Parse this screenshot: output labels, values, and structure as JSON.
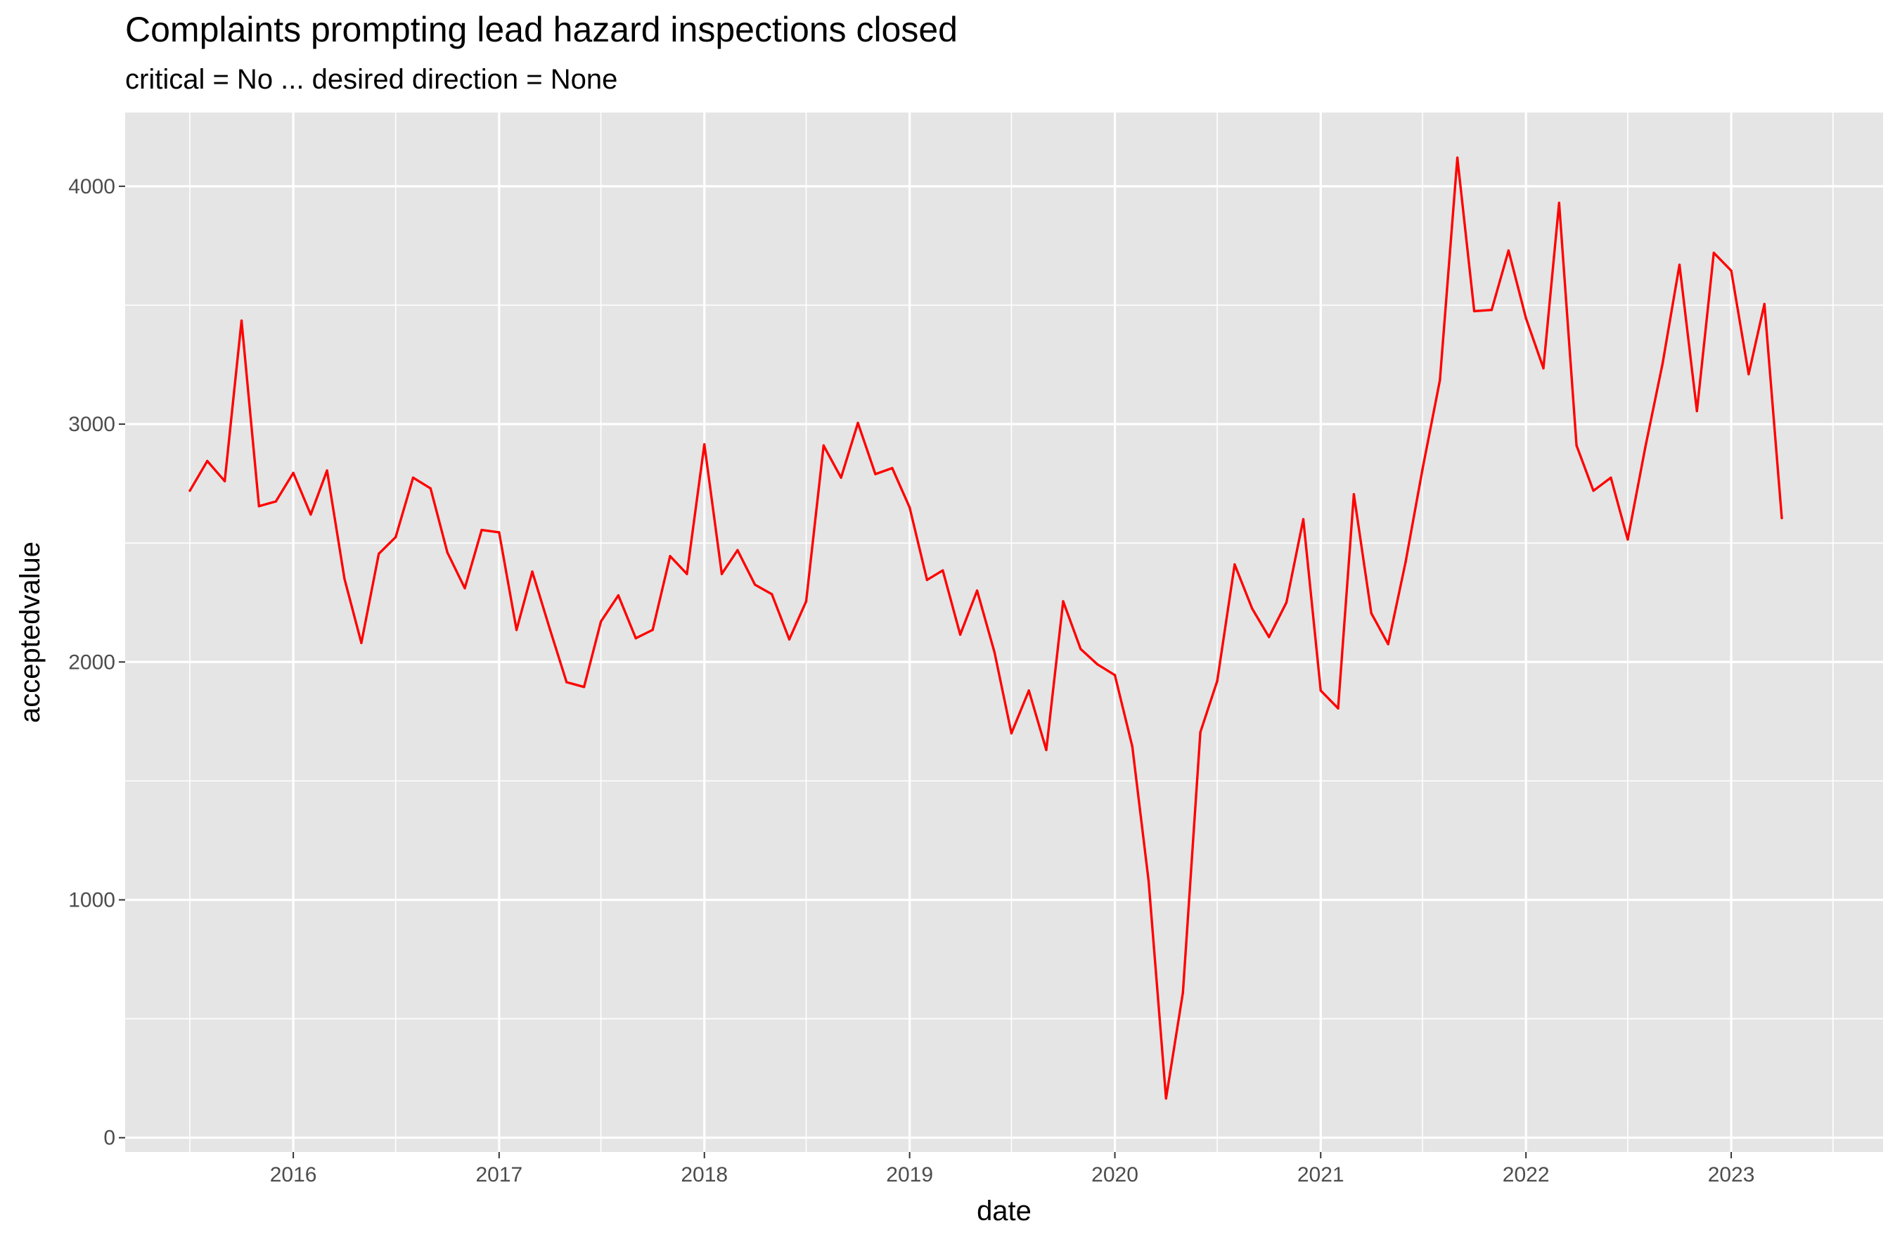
{
  "chart_data": {
    "type": "line",
    "title": "Complaints prompting lead hazard inspections closed",
    "subtitle": "critical = No ... desired direction = None",
    "xlabel": "date",
    "ylabel": "acceptedvalue",
    "x_ticks": [
      "2016",
      "2017",
      "2018",
      "2019",
      "2020",
      "2021",
      "2022",
      "2023"
    ],
    "y_ticks": [
      0,
      1000,
      2000,
      3000,
      4000
    ],
    "ylim": [
      -60,
      4310
    ],
    "xlim": [
      "2015-03-08",
      "2023-09-28"
    ],
    "grid": true,
    "line_color": "#ff0000",
    "panel_background": "#e5e5e5",
    "series": [
      {
        "x": [
          "2015-07-01",
          "2015-08-01",
          "2015-09-01",
          "2015-10-01",
          "2015-11-01",
          "2015-12-01",
          "2016-01-01",
          "2016-02-01",
          "2016-03-01",
          "2016-04-01",
          "2016-05-01",
          "2016-06-01",
          "2016-07-01",
          "2016-08-01",
          "2016-09-01",
          "2016-10-01",
          "2016-11-01",
          "2016-12-01",
          "2017-01-01",
          "2017-02-01",
          "2017-03-01",
          "2017-04-01",
          "2017-05-01",
          "2017-06-01",
          "2017-07-01",
          "2017-08-01",
          "2017-09-01",
          "2017-10-01",
          "2017-11-01",
          "2017-12-01",
          "2018-01-01",
          "2018-02-01",
          "2018-03-01",
          "2018-04-01",
          "2018-05-01",
          "2018-06-01",
          "2018-07-01",
          "2018-08-01",
          "2018-09-01",
          "2018-10-01",
          "2018-11-01",
          "2018-12-01",
          "2019-01-01",
          "2019-02-01",
          "2019-03-01",
          "2019-04-01",
          "2019-05-01",
          "2019-06-01",
          "2019-07-01",
          "2019-08-01",
          "2019-09-01",
          "2019-10-01",
          "2019-11-01",
          "2019-12-01",
          "2020-01-01",
          "2020-02-01",
          "2020-03-01",
          "2020-04-01",
          "2020-05-01",
          "2020-06-01",
          "2020-07-01",
          "2020-08-01",
          "2020-09-01",
          "2020-10-01",
          "2020-11-01",
          "2020-12-01",
          "2021-01-01",
          "2021-02-01",
          "2021-03-01",
          "2021-04-01",
          "2021-05-01",
          "2021-06-01",
          "2021-07-01",
          "2021-08-01",
          "2021-09-01",
          "2021-10-01",
          "2021-11-01",
          "2021-12-01",
          "2022-01-01",
          "2022-02-01",
          "2022-03-01",
          "2022-04-01",
          "2022-05-01",
          "2022-06-01",
          "2022-07-01",
          "2022-08-01",
          "2022-09-01",
          "2022-10-01",
          "2022-11-01",
          "2022-12-01",
          "2023-01-01",
          "2023-02-01",
          "2023-03-01",
          "2023-04-01"
        ],
        "y": [
          2720,
          2845,
          2760,
          3435,
          2655,
          2675,
          2795,
          2620,
          2805,
          2350,
          2080,
          2455,
          2525,
          2775,
          2730,
          2460,
          2310,
          2555,
          2545,
          2135,
          2380,
          2140,
          1915,
          1895,
          2170,
          2280,
          2100,
          2135,
          2445,
          2370,
          2915,
          2370,
          2470,
          2325,
          2285,
          2095,
          2255,
          2910,
          2775,
          3005,
          2790,
          2815,
          2650,
          2345,
          2385,
          2115,
          2300,
          2040,
          1700,
          1880,
          1630,
          2255,
          2055,
          1990,
          1945,
          1645,
          1080,
          165,
          610,
          1705,
          1920,
          2410,
          2225,
          2105,
          2250,
          2600,
          1880,
          1805,
          2705,
          2205,
          2075,
          2420,
          2810,
          3185,
          4120,
          3475,
          3480,
          3730,
          3445,
          3235,
          3930,
          2910,
          2720,
          2775,
          2515,
          2900,
          3255,
          3670,
          3055,
          3720,
          3645,
          3210,
          3505,
          2605
        ]
      }
    ]
  }
}
